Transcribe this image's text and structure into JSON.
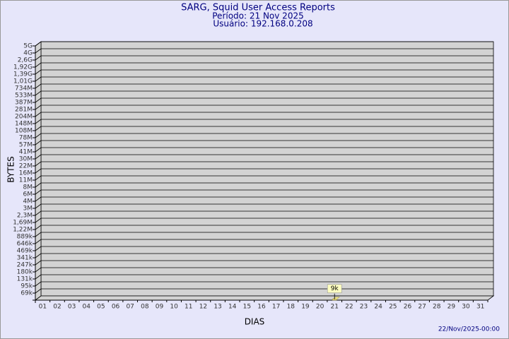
{
  "chart_data": {
    "type": "bar",
    "title": "SARG, Squid User Access Reports",
    "subtitle": [
      "Período: 21 Nov 2025",
      "Usuário: 192.168.0.208"
    ],
    "x_label": "DIAS",
    "y_label": "BYTES",
    "footer": "22/Nov/2025-00:00",
    "categories": [
      "01",
      "02",
      "03",
      "04",
      "05",
      "06",
      "07",
      "08",
      "09",
      "10",
      "11",
      "12",
      "13",
      "14",
      "15",
      "16",
      "17",
      "18",
      "19",
      "20",
      "21",
      "22",
      "23",
      "24",
      "25",
      "26",
      "27",
      "28",
      "29",
      "30",
      "31"
    ],
    "values": [
      null,
      null,
      null,
      null,
      null,
      null,
      null,
      null,
      null,
      null,
      null,
      null,
      null,
      null,
      null,
      null,
      null,
      null,
      null,
      null,
      9000,
      null,
      null,
      null,
      null,
      null,
      null,
      null,
      null,
      null,
      null
    ],
    "value_labels": [
      null,
      null,
      null,
      null,
      null,
      null,
      null,
      null,
      null,
      null,
      null,
      null,
      null,
      null,
      null,
      null,
      null,
      null,
      null,
      null,
      "9k",
      null,
      null,
      null,
      null,
      null,
      null,
      null,
      null,
      null,
      null
    ],
    "color": "#f0e68c",
    "ylim": [
      0,
      5000000000
    ],
    "yticks": [
      {
        "value": 69000,
        "label": "69k"
      },
      {
        "value": 95000,
        "label": "95k"
      },
      {
        "value": 131000,
        "label": "131k"
      },
      {
        "value": 180000,
        "label": "180k"
      },
      {
        "value": 247000,
        "label": "247k"
      },
      {
        "value": 341000,
        "label": "341k"
      },
      {
        "value": 469000,
        "label": "469k"
      },
      {
        "value": 646000,
        "label": "646k"
      },
      {
        "value": 889000,
        "label": "889k"
      },
      {
        "value": 1220000,
        "label": "1,22M"
      },
      {
        "value": 1690000,
        "label": "1,69M"
      },
      {
        "value": 2300000,
        "label": "2,3M"
      },
      {
        "value": 3000000,
        "label": "3M"
      },
      {
        "value": 4000000,
        "label": "4M"
      },
      {
        "value": 6000000,
        "label": "6M"
      },
      {
        "value": 8000000,
        "label": "8M"
      },
      {
        "value": 11000000,
        "label": "11M"
      },
      {
        "value": 16000000,
        "label": "16M"
      },
      {
        "value": 22000000,
        "label": "22M"
      },
      {
        "value": 30000000,
        "label": "30M"
      },
      {
        "value": 41000000,
        "label": "41M"
      },
      {
        "value": 57000000,
        "label": "57M"
      },
      {
        "value": 78000000,
        "label": "78M"
      },
      {
        "value": 108000000,
        "label": "108M"
      },
      {
        "value": 148000000,
        "label": "148M"
      },
      {
        "value": 204000000,
        "label": "204M"
      },
      {
        "value": 281000000,
        "label": "281M"
      },
      {
        "value": 387000000,
        "label": "387M"
      },
      {
        "value": 533000000,
        "label": "533M"
      },
      {
        "value": 734000000,
        "label": "734M"
      },
      {
        "value": 1010000000,
        "label": "1,01G"
      },
      {
        "value": 1390000000,
        "label": "1,39G"
      },
      {
        "value": 1920000000,
        "label": "1,92G"
      },
      {
        "value": 2600000000,
        "label": "2,6G"
      },
      {
        "value": 4000000000,
        "label": "4G"
      },
      {
        "value": 5000000000,
        "label": "5G"
      }
    ],
    "grid": true
  }
}
